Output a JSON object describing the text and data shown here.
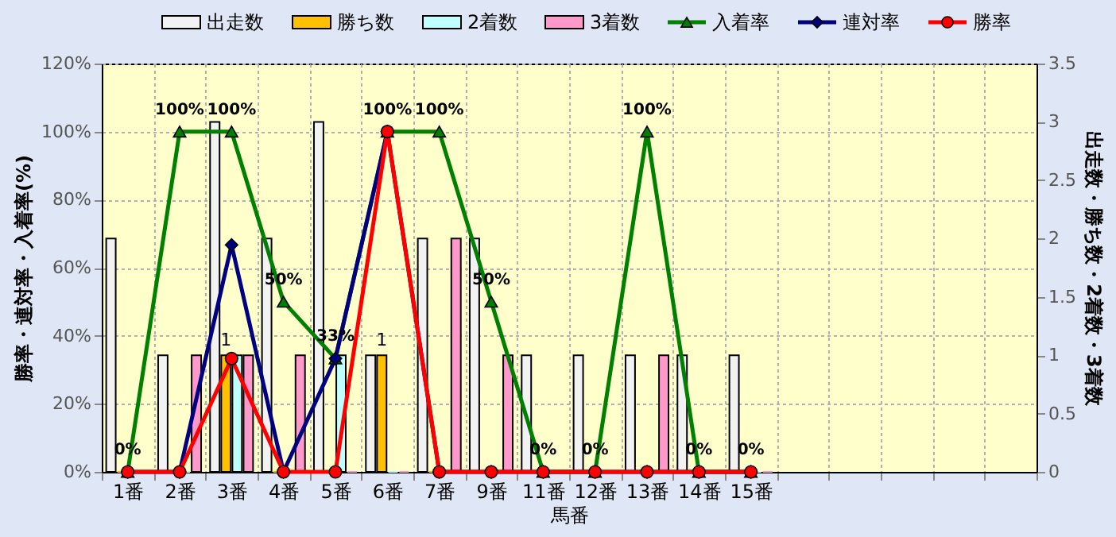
{
  "chart_data": {
    "type": "bar",
    "xlabel": "馬番",
    "ylabel": "勝率・連対率・入着率(%)",
    "y2label": "出走数・勝ち数・2着数・3着数",
    "categories": [
      "1番",
      "2番",
      "3番",
      "4番",
      "5番",
      "6番",
      "7番",
      "9番",
      "11番",
      "12番",
      "13番",
      "14番",
      "15番",
      null,
      null,
      null,
      null,
      null
    ],
    "series": [
      {
        "name": "出走数",
        "axis": "y2",
        "color": "#f2f2f2",
        "values": [
          2,
          1,
          3,
          2,
          3,
          1,
          2,
          2,
          1,
          1,
          1,
          1,
          1,
          null,
          null,
          null,
          null,
          null
        ]
      },
      {
        "name": "勝ち数",
        "axis": "y2",
        "color": "#ffc000",
        "values": [
          0,
          0,
          1,
          0,
          0,
          1,
          0,
          0,
          0,
          0,
          0,
          0,
          0,
          null,
          null,
          null,
          null,
          null
        ],
        "value_labels": [
          null,
          null,
          "1",
          null,
          null,
          "1",
          null,
          null,
          null,
          null,
          null,
          null,
          null,
          null,
          null,
          null,
          null,
          null
        ]
      },
      {
        "name": "2着数",
        "axis": "y2",
        "color": "#c0ffff",
        "values": [
          0,
          0,
          1,
          0,
          1,
          0,
          0,
          0,
          0,
          0,
          0,
          0,
          0,
          null,
          null,
          null,
          null,
          null
        ]
      },
      {
        "name": "3着数",
        "axis": "y2",
        "color": "#ff99cc",
        "values": [
          0,
          1,
          1,
          1,
          0,
          0,
          2,
          1,
          0,
          0,
          1,
          0,
          0,
          null,
          null,
          null,
          null,
          null
        ]
      },
      {
        "name": "入着率",
        "type": "line",
        "color": "#008000",
        "marker": "triangle",
        "values": [
          0,
          100,
          100,
          50,
          33.3,
          100,
          100,
          50,
          0,
          0,
          100,
          0,
          0,
          null,
          null,
          null,
          null,
          null
        ],
        "value_labels": [
          "0%",
          "100%",
          "100%",
          "50%",
          "33%",
          "100%",
          "100%",
          "50%",
          "0%",
          "0%",
          "100%",
          "0%",
          "0%",
          null,
          null,
          null,
          null,
          null
        ]
      },
      {
        "name": "連対率",
        "type": "line",
        "color": "#000080",
        "marker": "diamond",
        "values": [
          0,
          0,
          66.7,
          0,
          33.3,
          100,
          0,
          0,
          0,
          0,
          0,
          0,
          0,
          null,
          null,
          null,
          null,
          null
        ]
      },
      {
        "name": "勝率",
        "type": "line",
        "color": "#ff0000",
        "marker": "circle",
        "values": [
          0,
          0,
          33.3,
          0,
          0,
          100,
          0,
          0,
          0,
          0,
          0,
          0,
          0,
          null,
          null,
          null,
          null,
          null
        ]
      }
    ],
    "ylim": [
      0,
      120
    ],
    "yticks": [
      {
        "value": 0,
        "label": "0%"
      },
      {
        "value": 20,
        "label": "20%"
      },
      {
        "value": 40,
        "label": "40%"
      },
      {
        "value": 60,
        "label": "60%"
      },
      {
        "value": 80,
        "label": "80%"
      },
      {
        "value": 100,
        "label": "100%"
      },
      {
        "value": 120,
        "label": "120%"
      }
    ],
    "y2lim": [
      0,
      3.5
    ],
    "y2ticks": [
      0,
      0.5,
      1,
      1.5,
      2,
      2.5,
      3,
      3.5
    ],
    "grid": true,
    "legend": "top"
  }
}
